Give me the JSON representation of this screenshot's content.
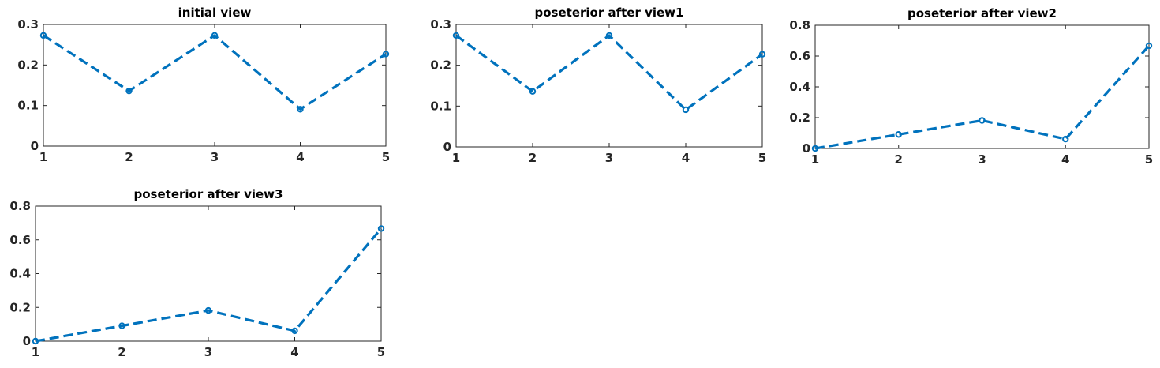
{
  "chart_data": [
    {
      "type": "line",
      "title": "initial view",
      "x": [
        1,
        2,
        3,
        4,
        5
      ],
      "series": [
        {
          "values": [
            0.273,
            0.136,
            0.273,
            0.091,
            0.227
          ],
          "color": "#0072BD"
        }
      ],
      "xlim": [
        1,
        5
      ],
      "ylim": [
        0,
        0.3
      ],
      "xticks": [
        "1",
        "2",
        "3",
        "4",
        "5"
      ],
      "yticks": [
        "0",
        "0.1",
        "0.2",
        "0.3"
      ],
      "yticks_values": [
        0,
        0.1,
        0.2,
        0.3
      ],
      "grid": false
    },
    {
      "type": "line",
      "title": "poseterior after view1",
      "x": [
        1,
        2,
        3,
        4,
        5
      ],
      "series": [
        {
          "values": [
            0.273,
            0.136,
            0.273,
            0.091,
            0.227
          ],
          "color": "#0072BD"
        }
      ],
      "xlim": [
        1,
        5
      ],
      "ylim": [
        0,
        0.3
      ],
      "xticks": [
        "1",
        "2",
        "3",
        "4",
        "5"
      ],
      "yticks": [
        "0",
        "0.1",
        "0.2",
        "0.3"
      ],
      "yticks_values": [
        0,
        0.1,
        0.2,
        0.3
      ],
      "grid": false
    },
    {
      "type": "line",
      "title": "poseterior after view2",
      "x": [
        1,
        2,
        3,
        4,
        5
      ],
      "series": [
        {
          "values": [
            0.0,
            0.091,
            0.182,
            0.061,
            0.667
          ],
          "color": "#0072BD"
        }
      ],
      "xlim": [
        1,
        5
      ],
      "ylim": [
        0,
        0.8
      ],
      "xticks": [
        "1",
        "2",
        "3",
        "4",
        "5"
      ],
      "yticks": [
        "0",
        "0.2",
        "0.4",
        "0.6",
        "0.8"
      ],
      "yticks_values": [
        0,
        0.2,
        0.4,
        0.6,
        0.8
      ],
      "grid": false
    },
    {
      "type": "line",
      "title": "poseterior after view3",
      "x": [
        1,
        2,
        3,
        4,
        5
      ],
      "series": [
        {
          "values": [
            0.0,
            0.091,
            0.182,
            0.061,
            0.667
          ],
          "color": "#0072BD"
        }
      ],
      "xlim": [
        1,
        5
      ],
      "ylim": [
        0,
        0.8
      ],
      "xticks": [
        "1",
        "2",
        "3",
        "4",
        "5"
      ],
      "yticks": [
        "0",
        "0.2",
        "0.4",
        "0.6",
        "0.8"
      ],
      "yticks_values": [
        0,
        0.2,
        0.4,
        0.6,
        0.8
      ],
      "grid": false
    }
  ]
}
